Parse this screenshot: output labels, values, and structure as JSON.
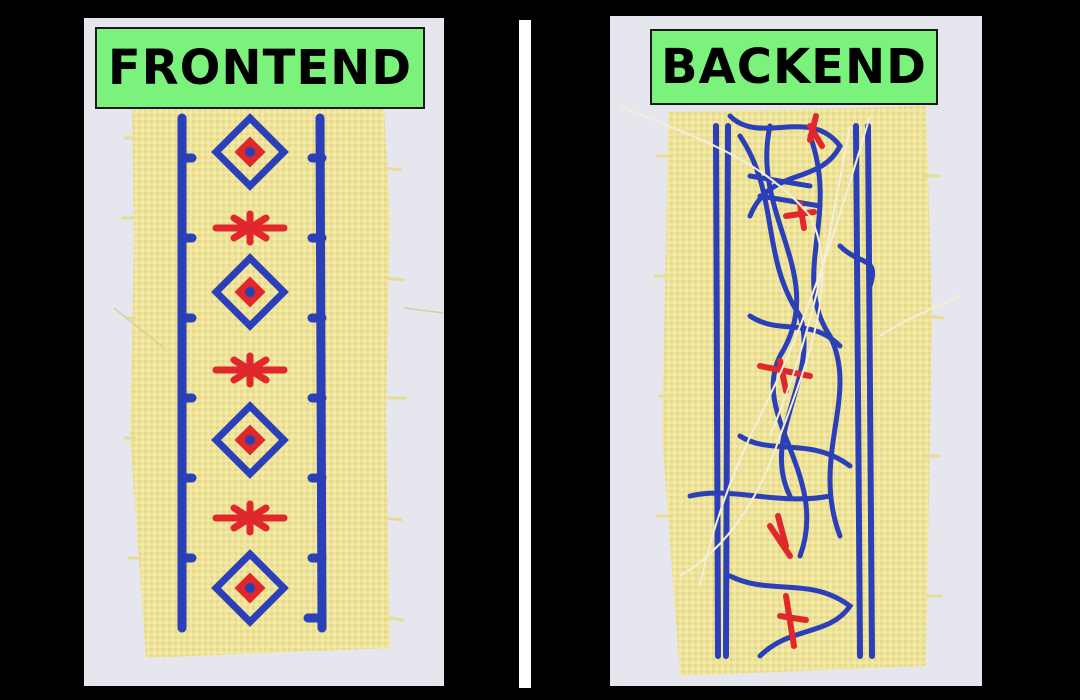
{
  "panels": {
    "left": {
      "label": "FRONTEND"
    },
    "right": {
      "label": "BACKEND"
    }
  },
  "colors": {
    "background": "#000000",
    "label_fill": "#7af27c",
    "fabric": "#eee39a",
    "thread_blue": "#2a3fb8",
    "thread_red": "#e0282c",
    "divider": "#ffffff"
  }
}
